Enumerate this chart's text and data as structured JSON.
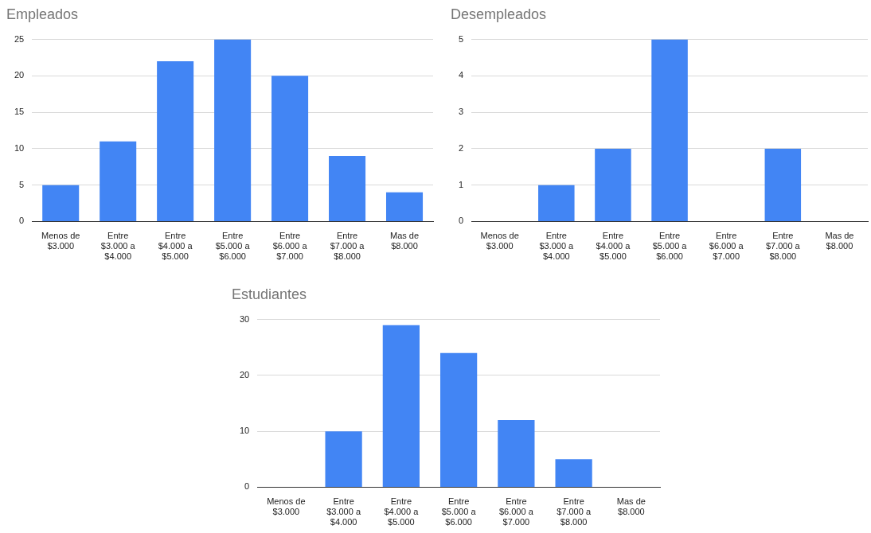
{
  "chart_data": [
    {
      "type": "bar",
      "title": "Empleados",
      "categories": [
        "Menos de $3.000",
        "Entre $3.000 a $4.000",
        "Entre $4.000 a $5.000",
        "Entre $5.000 a $6.000",
        "Entre $6.000 a $7.000",
        "Entre $7.000 a $8.000",
        "Mas de $8.000"
      ],
      "values": [
        5,
        11,
        22,
        25,
        20,
        9,
        4
      ],
      "color": "#4285f4",
      "ylim": [
        0,
        25
      ],
      "yticks": [
        0,
        5,
        10,
        15,
        20,
        25
      ],
      "grid": "y"
    },
    {
      "type": "bar",
      "title": "Desempleados",
      "categories": [
        "Menos de $3.000",
        "Entre $3.000 a $4.000",
        "Entre $4.000 a $5.000",
        "Entre $5.000 a $6.000",
        "Entre $6.000 a $7.000",
        "Entre $7.000 a $8.000",
        "Mas de $8.000"
      ],
      "values": [
        0,
        1,
        2,
        5,
        0,
        2,
        0
      ],
      "color": "#4285f4",
      "ylim": [
        0,
        5
      ],
      "yticks": [
        0,
        1,
        2,
        3,
        4,
        5
      ],
      "grid": "y"
    },
    {
      "type": "bar",
      "title": "Estudiantes",
      "categories": [
        "Menos de $3.000",
        "Entre $3.000 a $4.000",
        "Entre $4.000 a $5.000",
        "Entre $5.000 a $6.000",
        "Entre $6.000 a $7.000",
        "Entre $7.000 a $8.000",
        "Mas de $8.000"
      ],
      "values": [
        0,
        10,
        29,
        24,
        12,
        5,
        0
      ],
      "color": "#4285f4",
      "ylim": [
        0,
        30
      ],
      "yticks": [
        0,
        10,
        20,
        30
      ],
      "grid": "y"
    }
  ]
}
